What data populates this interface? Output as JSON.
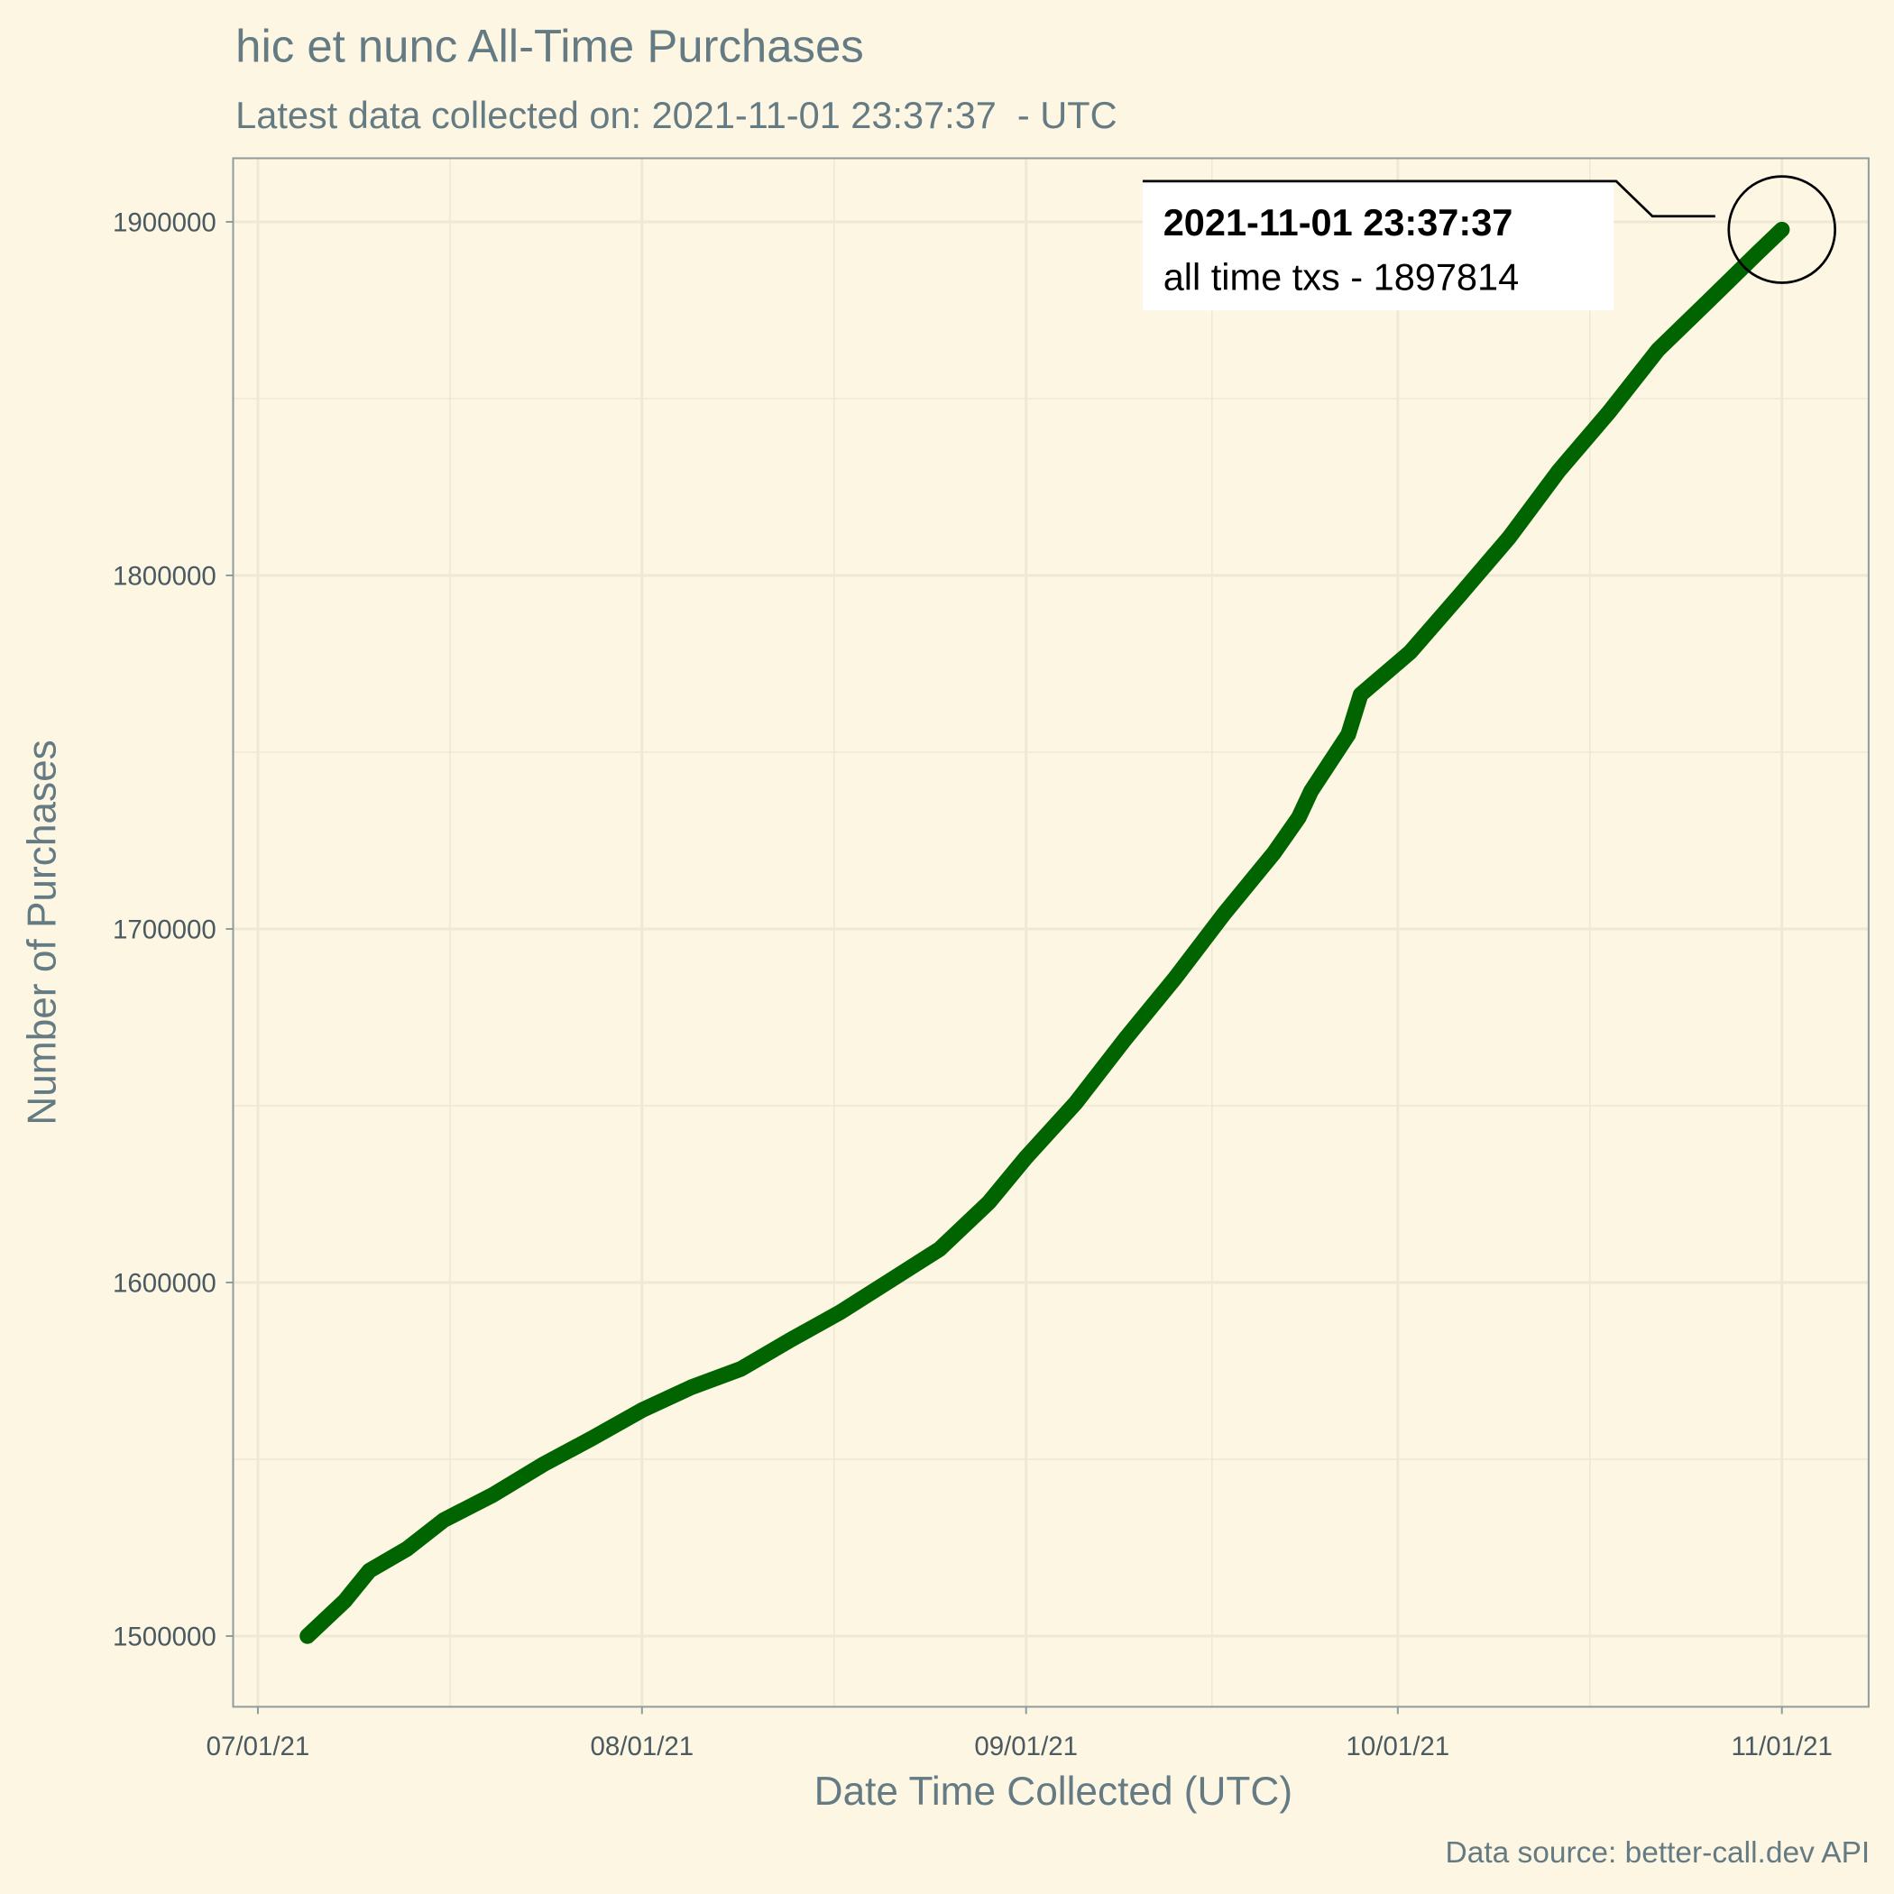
{
  "chart_data": {
    "type": "line",
    "title": "hic et nunc All-Time Purchases",
    "subtitle": "Latest data collected on: 2021-11-01 23:37:37  - UTC",
    "x_label": "Date Time Collected (UTC)",
    "y_label": "Number of Purchases",
    "caption": "Data source: better-call.dev API",
    "annotation": {
      "title": "2021-11-01 23:37:37",
      "text": "all time txs - 1897814"
    },
    "color": "#006400",
    "grid": true,
    "x": [
      "2021-07-05",
      "2021-07-08",
      "2021-07-10",
      "2021-07-13",
      "2021-07-16",
      "2021-07-20",
      "2021-07-24",
      "2021-07-28",
      "2021-08-01",
      "2021-08-05",
      "2021-08-09",
      "2021-08-13",
      "2021-08-17",
      "2021-08-21",
      "2021-08-25",
      "2021-08-29",
      "2021-09-01",
      "2021-09-05",
      "2021-09-09",
      "2021-09-13",
      "2021-09-17",
      "2021-09-21",
      "2021-09-23",
      "2021-09-24",
      "2021-09-27",
      "2021-09-28",
      "2021-10-02",
      "2021-10-06",
      "2021-10-10",
      "2021-10-14",
      "2021-10-18",
      "2021-10-22",
      "2021-10-26",
      "2021-10-30",
      "2021-11-01"
    ],
    "values": [
      1500000,
      1509900,
      1518500,
      1524600,
      1532800,
      1540000,
      1548500,
      1556000,
      1563900,
      1570400,
      1575600,
      1583800,
      1591600,
      1600500,
      1609400,
      1622700,
      1635400,
      1650800,
      1668900,
      1686000,
      1704400,
      1721500,
      1731500,
      1739000,
      1755000,
      1766300,
      1778300,
      1794400,
      1810800,
      1829600,
      1846000,
      1863800,
      1877400,
      1891100,
      1897814
    ],
    "xlim": [
      "2021-06-29",
      "2021-11-08"
    ],
    "xticks": [
      {
        "value": "2021-07-01",
        "label": "07/01/21"
      },
      {
        "value": "2021-08-01",
        "label": "08/01/21"
      },
      {
        "value": "2021-09-01",
        "label": "09/01/21"
      },
      {
        "value": "2021-10-01",
        "label": "10/01/21"
      },
      {
        "value": "2021-11-01",
        "label": "11/01/21"
      }
    ],
    "ylim": [
      1480000,
      1918000
    ],
    "yticks": [
      1500000,
      1600000,
      1700000,
      1800000,
      1900000
    ]
  }
}
